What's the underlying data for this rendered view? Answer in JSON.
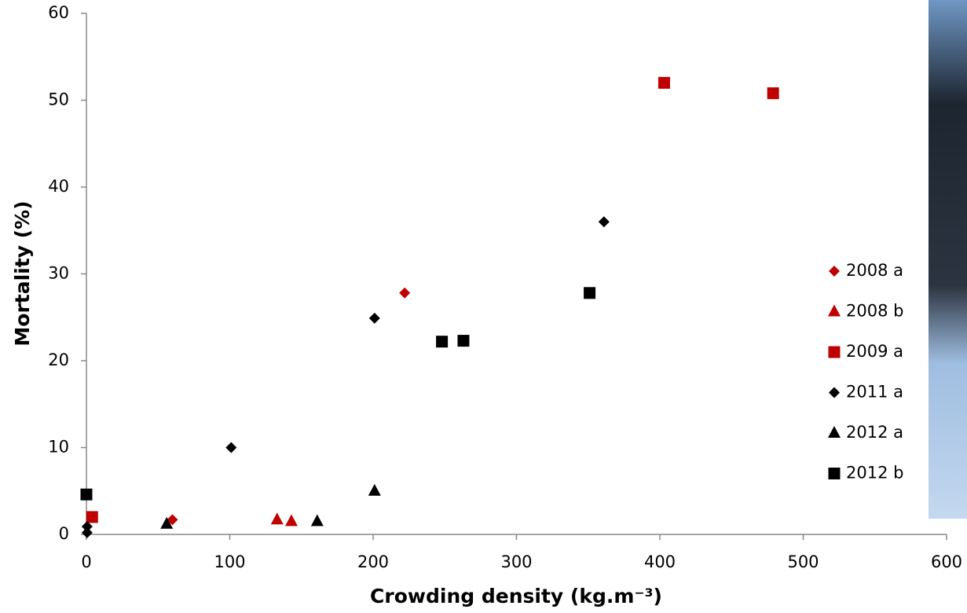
{
  "chart_data": {
    "type": "scatter",
    "x_label": "Crowding density (kg.m⁻³)",
    "y_label": "Mortality (%)",
    "xlim": [
      0,
      600
    ],
    "xticks": [
      0,
      100,
      200,
      300,
      400,
      500,
      600
    ],
    "ylim": [
      0,
      60
    ],
    "yticks": [
      0,
      10,
      20,
      30,
      40,
      50,
      60
    ],
    "grid": false,
    "legend": "right",
    "series": [
      {
        "name": "2008 a",
        "color": "#c00000",
        "marker": "diamond",
        "x": [
          60,
          222
        ],
        "values": [
          1.7,
          27.8
        ]
      },
      {
        "name": "2008 b",
        "color": "#c00000",
        "marker": "triangle",
        "x": [
          133,
          143
        ],
        "values": [
          1.7,
          1.5
        ]
      },
      {
        "name": "2009 a",
        "color": "#c00000",
        "marker": "square",
        "x": [
          4,
          403,
          479
        ],
        "values": [
          2.0,
          52.0,
          50.8
        ]
      },
      {
        "name": "2011 a",
        "color": "#000000",
        "marker": "diamond",
        "x": [
          0.5,
          0.5,
          101,
          201,
          361
        ],
        "values": [
          0.2,
          0.9,
          10.0,
          24.9,
          36.0
        ]
      },
      {
        "name": "2012 a",
        "color": "#000000",
        "marker": "triangle",
        "x": [
          56,
          161,
          201
        ],
        "values": [
          1.2,
          1.5,
          5.0
        ]
      },
      {
        "name": "2012 b",
        "color": "#000000",
        "marker": "square",
        "x": [
          0,
          248,
          263,
          351
        ],
        "values": [
          4.6,
          22.2,
          22.3,
          27.8
        ]
      }
    ]
  }
}
